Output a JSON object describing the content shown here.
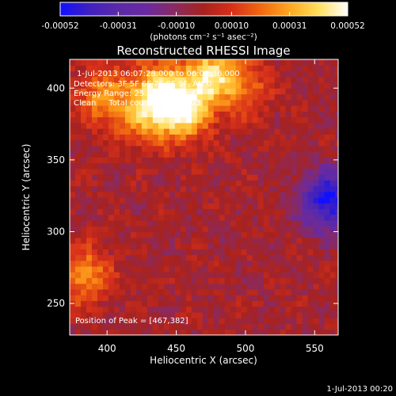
{
  "colorbar": {
    "tick_labels": [
      "-0.00052",
      "-0.00031",
      "-0.00010",
      "0.00010",
      "0.00031",
      "0.00052"
    ],
    "tick_values": [
      -0.00052,
      -0.00031,
      -0.0001,
      0.0001,
      0.00031,
      0.00052
    ],
    "range": [
      -0.00052,
      0.00052
    ],
    "units_label": "(photons cm⁻² s⁻¹ asec⁻²)",
    "colors": [
      "#1010ff",
      "#4020c0",
      "#5a2aa8",
      "#6a2aa0",
      "#8a2a60",
      "#a8221e",
      "#d8301a",
      "#f06a10",
      "#ffa820",
      "#ffe060",
      "#ffffff"
    ]
  },
  "chart_data": {
    "type": "heatmap",
    "title": "Reconstructed RHESSI Image",
    "xlabel": "Heliocentric X (arcsec)",
    "ylabel": "Heliocentric Y (arcsec)",
    "xlim": [
      373,
      567
    ],
    "ylim": [
      228,
      420
    ],
    "xticks": [
      400,
      450,
      500,
      550
    ],
    "yticks": [
      250,
      300,
      350,
      400
    ],
    "grid": false,
    "annotations": [
      "1-Jul-2013 06:07:28.000 to 06:08:36.000",
      "Detectors: 3F 5F 6F 7F 8F 9F, Att 0",
      "Energy Range: 25.0 - 50.0 keV",
      "Clean     Total counts: 2.58E+03"
    ],
    "peak_label": "Position of Peak = [467,382]",
    "peak": [
      467,
      382
    ],
    "bright_sources": [
      {
        "x": 455,
        "y": 385,
        "value": 0.00052
      },
      {
        "x": 475,
        "y": 410,
        "value": 0.0004
      },
      {
        "x": 435,
        "y": 400,
        "value": 0.00035
      },
      {
        "x": 425,
        "y": 380,
        "value": 0.00025
      },
      {
        "x": 382,
        "y": 270,
        "value": 0.0003
      },
      {
        "x": 395,
        "y": 395,
        "value": 0.00025
      },
      {
        "x": 500,
        "y": 400,
        "value": 0.0002
      }
    ],
    "negative_sources": [
      {
        "x": 560,
        "y": 322,
        "value": -0.0005
      }
    ]
  },
  "footer": {
    "timestamp": "1-Jul-2013 00:20"
  }
}
